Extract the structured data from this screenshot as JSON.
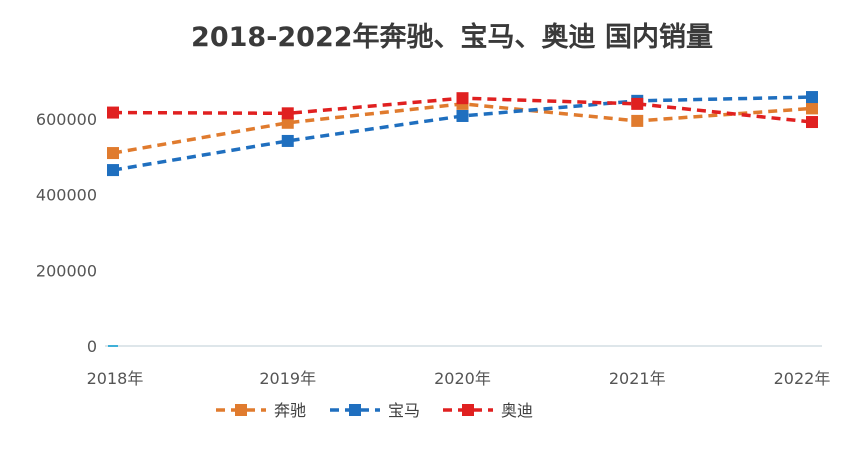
{
  "chart_data": {
    "type": "line",
    "title": "2018-2022年奔驰、宝马、奥迪 国内销量",
    "categories": [
      "2018年",
      "2019年",
      "2020年",
      "2021年",
      "2022年"
    ],
    "series": [
      {
        "name": "奔驰",
        "color": "#E07B2E",
        "values": [
          510000,
          590000,
          640000,
          595000,
          628000
        ]
      },
      {
        "name": "宝马",
        "color": "#1F6FBF",
        "values": [
          465000,
          542000,
          608000,
          648000,
          658000
        ]
      },
      {
        "name": "奥迪",
        "color": "#E02020",
        "values": [
          617000,
          615000,
          655000,
          640000,
          592000
        ]
      }
    ],
    "yticks": [
      0,
      200000,
      400000,
      600000
    ],
    "ytick_labels": [
      "0",
      "200000",
      "400000",
      "600000"
    ],
    "ylim": [
      0,
      700000
    ],
    "xlabel": "",
    "ylabel": "",
    "grid": false,
    "legend_position": "bottom"
  }
}
